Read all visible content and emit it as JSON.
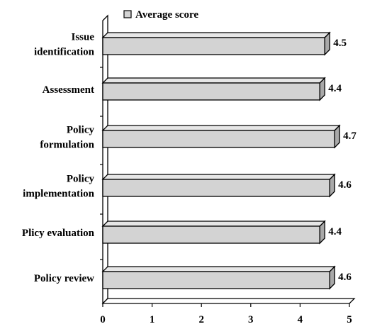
{
  "chart_data": {
    "type": "bar",
    "orientation": "horizontal",
    "style": "3d",
    "categories": [
      [
        "Issue",
        "identification"
      ],
      [
        "Assessment"
      ],
      [
        "Policy",
        "formulation"
      ],
      [
        "Policy",
        "implementation"
      ],
      [
        "Plicy evaluation"
      ],
      [
        "Policy review"
      ]
    ],
    "series": [
      {
        "name": "Average score",
        "values": [
          4.5,
          4.4,
          4.7,
          4.6,
          4.4,
          4.6
        ]
      }
    ],
    "value_labels": [
      "4.5",
      "4.4",
      "4.7",
      "4.6",
      "4.4",
      "4.6"
    ],
    "x_ticks": [
      "0",
      "1",
      "2",
      "3",
      "4",
      "5"
    ],
    "xlim": [
      0,
      5
    ],
    "grid": false,
    "legend": {
      "position": "top",
      "label": "Average score"
    },
    "colors": {
      "bar": "#d3d3d3",
      "outline": "#000000"
    }
  }
}
